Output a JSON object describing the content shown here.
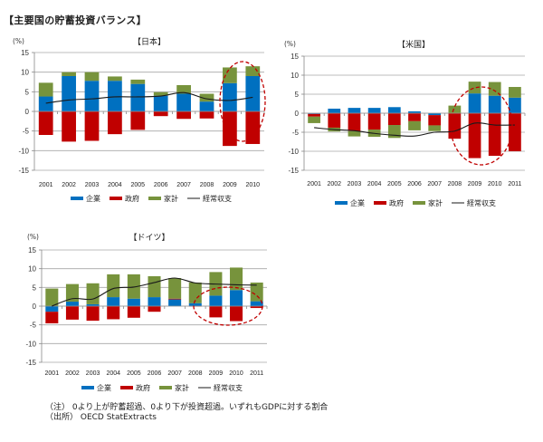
{
  "page": {
    "title": "【主要国の貯蓄投資バランス】",
    "note": "（注） 0より上が貯蓄超過、0より下が投資超過。いずれもGDPに対する割合",
    "source": "（出所） OECD StatExtracts"
  },
  "colors": {
    "corporate": "#0070C0",
    "government": "#C00000",
    "household": "#77933C",
    "current_account": "#1a1a1a",
    "highlight_ellipse": "#C00000",
    "grid": "#A6A6A6"
  },
  "chart_data": [
    {
      "type": "bar",
      "stacked": true,
      "title": "【日本】",
      "ylabel": "(%)",
      "ylim": [
        -15,
        15
      ],
      "yticks": [
        15,
        10,
        5,
        0,
        -5,
        -10,
        -15
      ],
      "grid": true,
      "legend_position": "bottom",
      "categories": [
        "2001",
        "2002",
        "2003",
        "2004",
        "2005",
        "2006",
        "2007",
        "2008",
        "2009",
        "2010"
      ],
      "series": [
        {
          "name": "企業",
          "kind": "bar",
          "values": [
            3.8,
            9.0,
            7.8,
            7.8,
            7.0,
            4.0,
            4.5,
            2.5,
            7.2,
            9.0
          ]
        },
        {
          "name": "政府",
          "kind": "bar",
          "values": [
            -6.0,
            -7.7,
            -7.5,
            -5.8,
            -4.7,
            -1.2,
            -1.9,
            -1.8,
            -8.8,
            -8.3
          ]
        },
        {
          "name": "家計",
          "kind": "bar",
          "values": [
            3.5,
            1.0,
            2.2,
            1.1,
            1.1,
            0.9,
            2.2,
            2.0,
            4.0,
            2.5
          ]
        },
        {
          "name": "経常収支",
          "kind": "line",
          "values": [
            2.1,
            2.9,
            3.2,
            3.7,
            3.7,
            3.9,
            4.8,
            3.2,
            2.8,
            3.6
          ]
        }
      ],
      "legend": [
        "企業",
        "政府",
        "家計",
        "経常収支"
      ],
      "highlight": [
        "2009",
        "2010"
      ]
    },
    {
      "type": "bar",
      "stacked": true,
      "title": "【米国】",
      "ylabel": "(%)",
      "ylim": [
        -15,
        15
      ],
      "yticks": [
        15,
        10,
        5,
        0,
        -5,
        -10,
        -15
      ],
      "grid": true,
      "legend_position": "bottom",
      "categories": [
        "2001",
        "2002",
        "2003",
        "2004",
        "2005",
        "2006",
        "2007",
        "2008",
        "2009",
        "2010",
        "2011"
      ],
      "series": [
        {
          "name": "企業",
          "kind": "bar",
          "values": [
            -0.2,
            1.2,
            1.4,
            1.4,
            1.6,
            0.5,
            -0.5,
            0.0,
            5.2,
            4.6,
            4.1
          ]
        },
        {
          "name": "政府",
          "kind": "bar",
          "values": [
            -0.7,
            -3.8,
            -4.7,
            -4.3,
            -3.1,
            -2.1,
            -2.7,
            -6.7,
            -11.8,
            -11.2,
            -10.0
          ]
        },
        {
          "name": "家計",
          "kind": "bar",
          "values": [
            -1.7,
            -1.0,
            -1.4,
            -1.9,
            -3.4,
            -2.4,
            -1.5,
            2.0,
            3.1,
            3.6,
            2.8
          ]
        },
        {
          "name": "経常収支",
          "kind": "line",
          "values": [
            -3.8,
            -4.3,
            -4.6,
            -5.3,
            -5.8,
            -6.0,
            -5.0,
            -4.7,
            -2.6,
            -3.1,
            -3.1
          ]
        }
      ],
      "legend": [
        "企業",
        "政府",
        "家計",
        "経常収支"
      ],
      "highlight": [
        "2009",
        "2010",
        "2011"
      ]
    },
    {
      "type": "bar",
      "stacked": true,
      "title": "【ドイツ】",
      "ylabel": "(%)",
      "ylim": [
        -15,
        15
      ],
      "yticks": [
        15,
        10,
        5,
        0,
        -5,
        -10,
        -15
      ],
      "grid": true,
      "legend_position": "bottom",
      "categories": [
        "2001",
        "2002",
        "2003",
        "2004",
        "2005",
        "2006",
        "2007",
        "2008",
        "2009",
        "2010",
        "2011"
      ],
      "series": [
        {
          "name": "企業",
          "kind": "bar",
          "values": [
            -1.5,
            1.2,
            0.5,
            2.4,
            2.0,
            2.4,
            1.8,
            0.8,
            2.8,
            4.3,
            1.3
          ]
        },
        {
          "name": "政府",
          "kind": "bar",
          "values": [
            -3.1,
            -3.6,
            -3.9,
            -3.5,
            -3.1,
            -1.5,
            0.2,
            -0.1,
            -3.0,
            -4.0,
            -0.5
          ]
        },
        {
          "name": "家計",
          "kind": "bar",
          "values": [
            4.7,
            4.7,
            5.6,
            6.1,
            6.5,
            5.6,
            5.5,
            5.5,
            6.3,
            6.0,
            5.0
          ]
        },
        {
          "name": "経常収支",
          "kind": "line",
          "values": [
            0.0,
            2.0,
            1.9,
            4.7,
            5.1,
            6.3,
            7.5,
            6.2,
            5.9,
            5.7,
            5.6
          ]
        }
      ],
      "legend": [
        "企業",
        "政府",
        "家計",
        "経常収支"
      ],
      "highlight": [
        "2009",
        "2010",
        "2011"
      ]
    }
  ]
}
